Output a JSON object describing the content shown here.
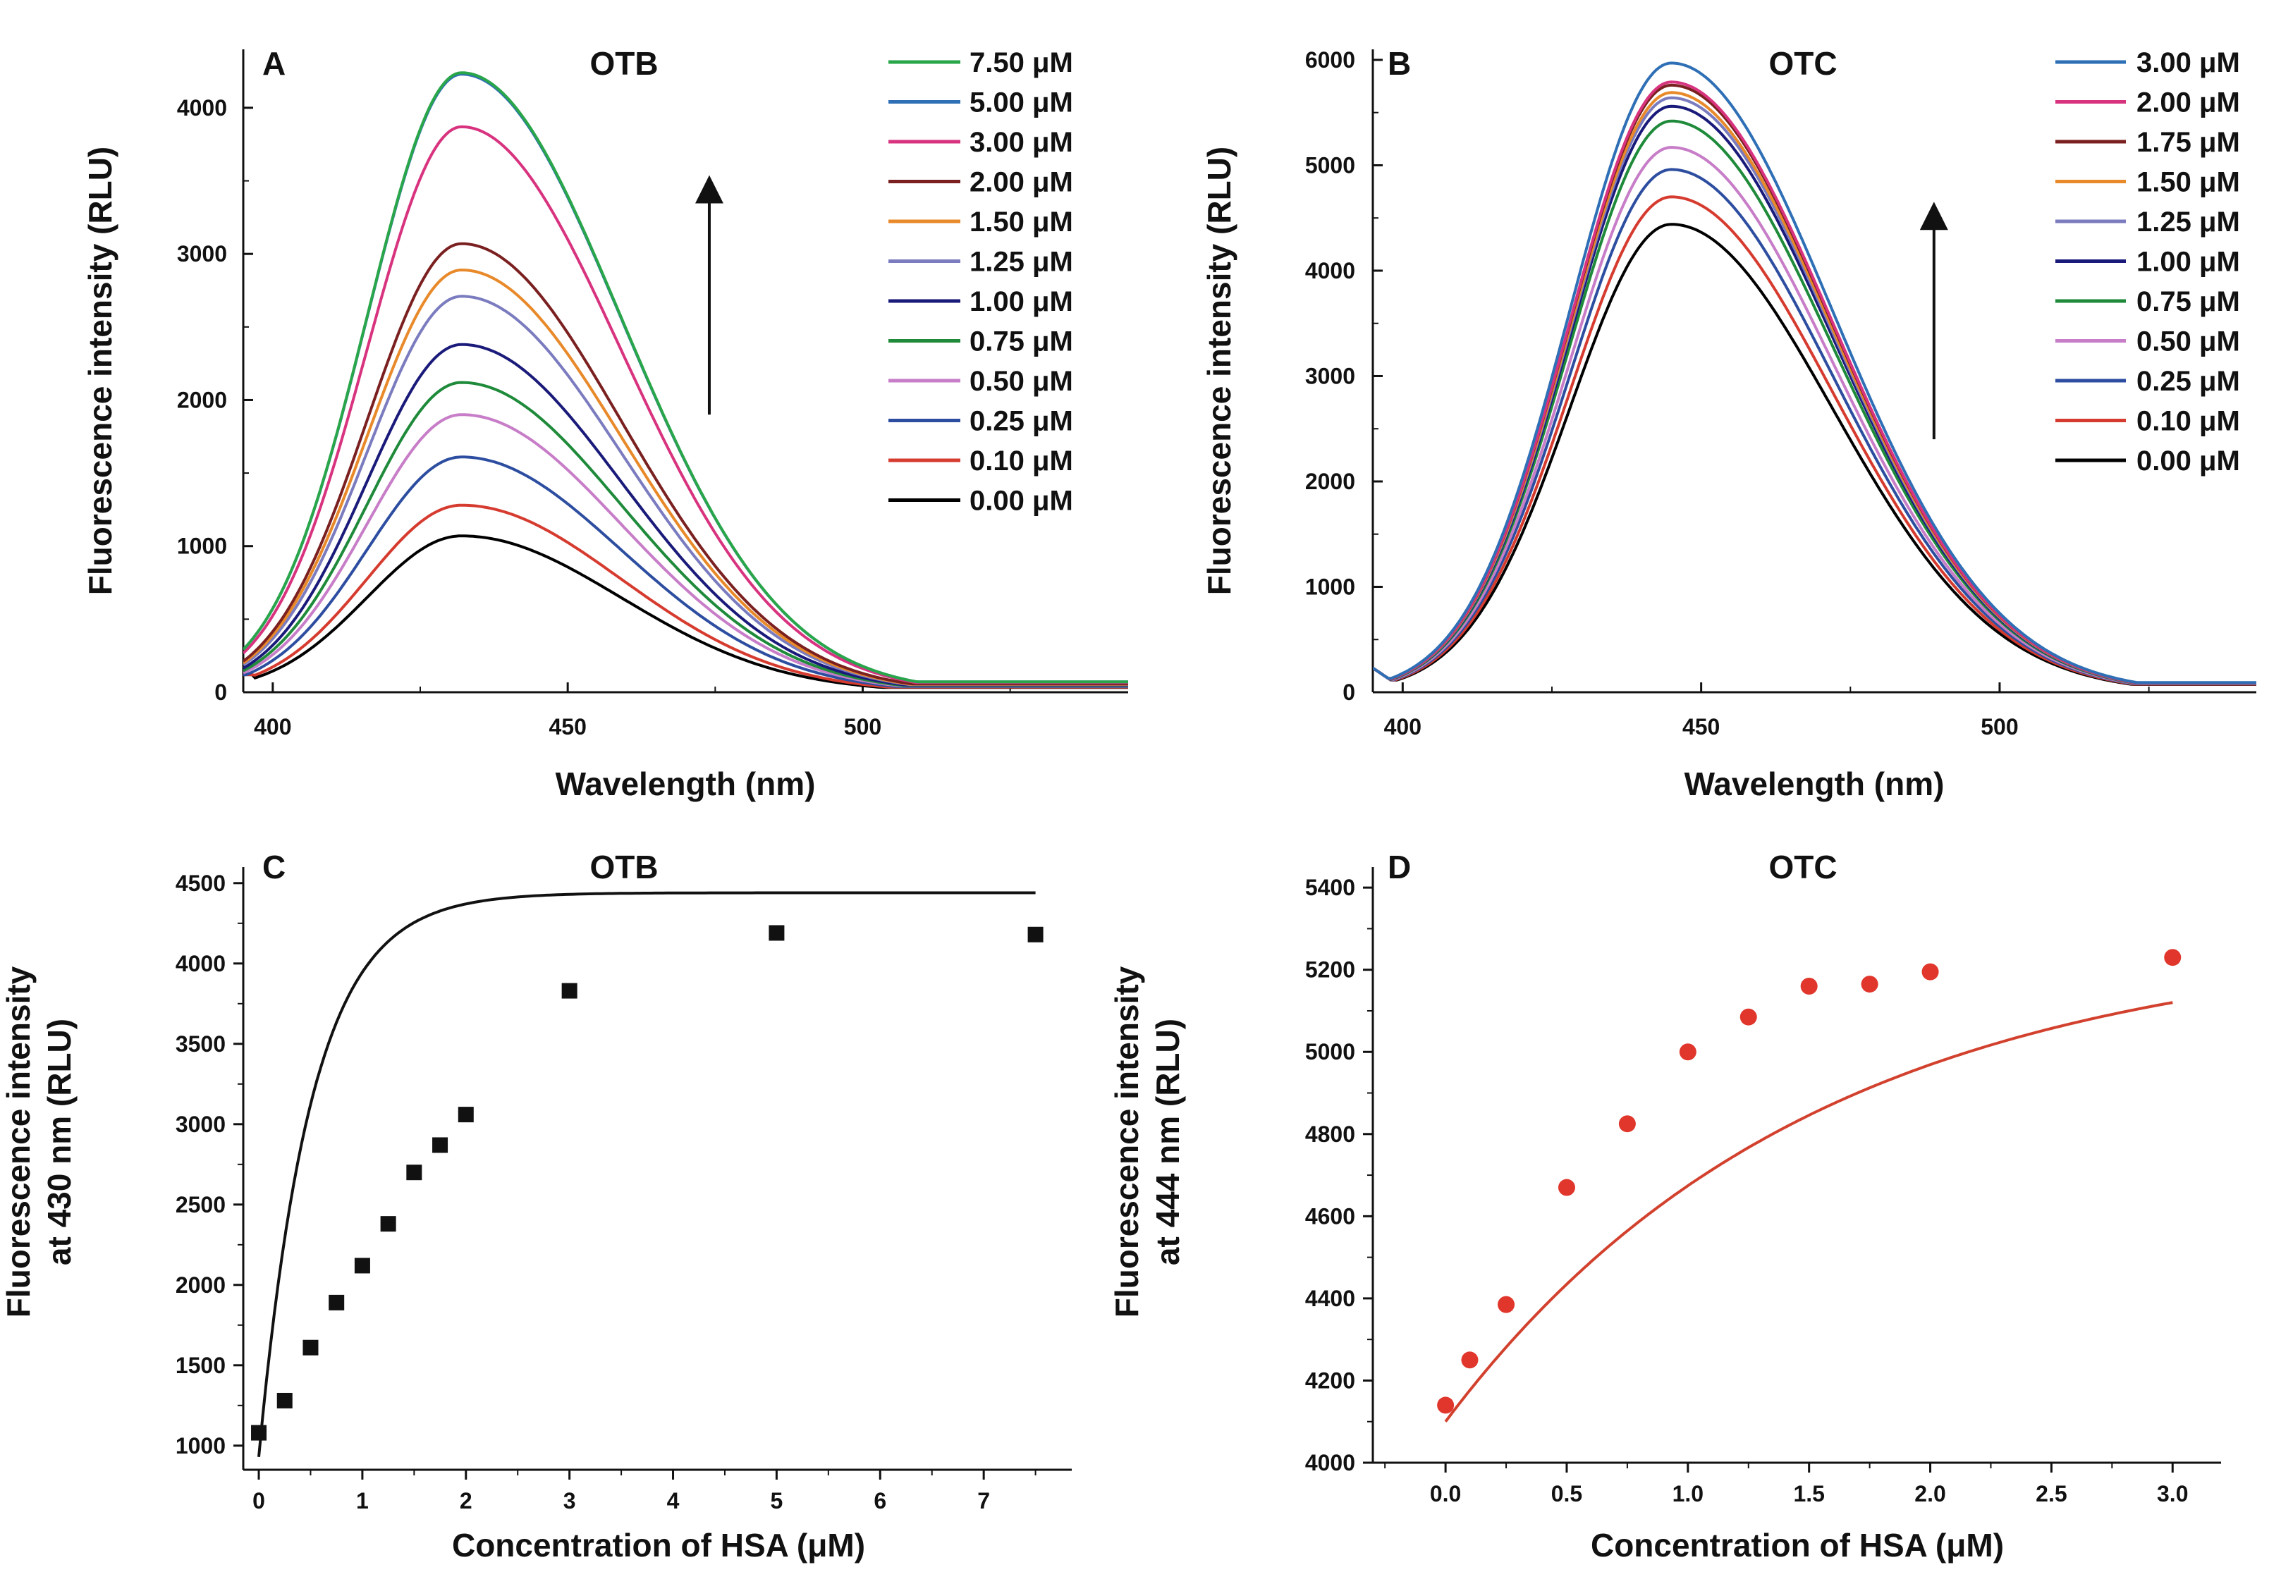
{
  "chart_data": [
    {
      "id": "A",
      "type": "line",
      "panel_letter": "A",
      "title": "OTB",
      "xlabel": "Wavelength (nm)",
      "ylabel": "Fluorescence intensity (RLU)",
      "xlim": [
        395,
        545
      ],
      "ylim": [
        0,
        4400
      ],
      "xticks": [
        400,
        450,
        500
      ],
      "yticks": [
        0,
        1000,
        2000,
        3000,
        4000
      ],
      "x_minor_step": 25,
      "y_minor_step": 500,
      "legend_position": "top-right",
      "curve_shape": {
        "peak_nm": 432,
        "sigma_left_nm": 16,
        "sigma_right_nm": 27,
        "baseline_start": 120
      },
      "arrow": {
        "x": 474,
        "y_from": 1900,
        "y_to": 3500
      },
      "series": [
        {
          "name": "7.50 μM",
          "color": "#2aa64a",
          "peak": 4240
        },
        {
          "name": "5.00 μM",
          "color": "#2e6fb5",
          "peak": 4230
        },
        {
          "name": "3.00 μM",
          "color": "#d8337f",
          "peak": 3870
        },
        {
          "name": "2.00 μM",
          "color": "#7b2020",
          "peak": 3070
        },
        {
          "name": "1.50 μM",
          "color": "#e8892a",
          "peak": 2890
        },
        {
          "name": "1.25 μM",
          "color": "#7b7bbf",
          "peak": 2710
        },
        {
          "name": "1.00 μM",
          "color": "#1a1a7a",
          "peak": 2380
        },
        {
          "name": "0.75 μM",
          "color": "#1e8a3a",
          "peak": 2120
        },
        {
          "name": "0.50 μM",
          "color": "#c77dc7",
          "peak": 1900
        },
        {
          "name": "0.25 μM",
          "color": "#2d4ea0",
          "peak": 1610
        },
        {
          "name": "0.10 μM",
          "color": "#d63b2f",
          "peak": 1280
        },
        {
          "name": "0.00 μM",
          "color": "#000000",
          "peak": 1070
        }
      ]
    },
    {
      "id": "B",
      "type": "line",
      "panel_letter": "B",
      "title": "OTC",
      "xlabel": "Wavelength (nm)",
      "ylabel": "Fluorescence intensity (RLU)",
      "xlim": [
        395,
        543
      ],
      "ylim": [
        0,
        6100
      ],
      "xticks": [
        400,
        450,
        500
      ],
      "yticks": [
        0,
        1000,
        2000,
        3000,
        4000,
        5000,
        6000
      ],
      "x_minor_step": 25,
      "y_minor_step": 500,
      "legend_position": "top-right",
      "curve_shape": {
        "peak_nm": 445,
        "sigma_left_nm": 17,
        "sigma_right_nm": 27,
        "baseline_start": 230
      },
      "arrow": {
        "x": 489,
        "y_from": 2400,
        "y_to": 4600
      },
      "series": [
        {
          "name": "3.00 μM",
          "color": "#2e6fb5",
          "peak": 5970
        },
        {
          "name": "2.00 μM",
          "color": "#d8337f",
          "peak": 5790
        },
        {
          "name": "1.75 μM",
          "color": "#7b2020",
          "peak": 5760
        },
        {
          "name": "1.50 μM",
          "color": "#e8892a",
          "peak": 5690
        },
        {
          "name": "1.25 μM",
          "color": "#7b7bbf",
          "peak": 5640
        },
        {
          "name": "1.00 μM",
          "color": "#1a1a7a",
          "peak": 5560
        },
        {
          "name": "0.75 μM",
          "color": "#1e8a3a",
          "peak": 5420
        },
        {
          "name": "0.50 μM",
          "color": "#c77dc7",
          "peak": 5170
        },
        {
          "name": "0.25 μM",
          "color": "#2d4ea0",
          "peak": 4960
        },
        {
          "name": "0.10 μM",
          "color": "#d63b2f",
          "peak": 4700
        },
        {
          "name": "0.00 μM",
          "color": "#000000",
          "peak": 4440
        }
      ]
    },
    {
      "id": "C",
      "type": "scatter",
      "panel_letter": "C",
      "title": "OTB",
      "xlabel": "Concentration of HSA (μM)",
      "ylabel": [
        "Fluorescence intensity",
        "at 430 nm (RLU)"
      ],
      "xlim": [
        -0.15,
        7.85
      ],
      "ylim": [
        850,
        4600
      ],
      "xticks": [
        0,
        1,
        2,
        3,
        4,
        5,
        6,
        7
      ],
      "yticks": [
        1000,
        1500,
        2000,
        2500,
        3000,
        3500,
        4000,
        4500
      ],
      "x_minor_step": 0.5,
      "y_minor_step": 250,
      "marker": "square",
      "point_color": "#111111",
      "fit_color": "#111111",
      "x": [
        0,
        0.25,
        0.5,
        0.75,
        1.0,
        1.25,
        1.5,
        1.75,
        2.0,
        3.0,
        5.0,
        7.5
      ],
      "y": [
        1080,
        1280,
        1610,
        1890,
        2120,
        2380,
        2700,
        2870,
        3060,
        3830,
        4190,
        4180
      ],
      "fit": {
        "model": "saturation",
        "y0": 930,
        "ymax": 4440,
        "k": 0.51,
        "x_range": [
          0,
          7.5
        ]
      }
    },
    {
      "id": "D",
      "type": "scatter",
      "panel_letter": "D",
      "title": "OTC",
      "xlabel": "Concentration of HSA (μM)",
      "ylabel": [
        "Fluorescence intensity",
        "at 444 nm (RLU)"
      ],
      "xlim": [
        -0.3,
        3.2
      ],
      "ylim": [
        4000,
        5450
      ],
      "xticks": [
        "0.0",
        "0.5",
        "1.0",
        "1.5",
        "2.0",
        "2.5",
        "3.0"
      ],
      "yticks": [
        4000,
        4200,
        4400,
        4600,
        4800,
        5000,
        5200,
        5400
      ],
      "x_minor_step": 0.25,
      "y_minor_step": 100,
      "marker": "circle",
      "point_color": "#e0362c",
      "fit_color": "#d2412e",
      "x": [
        0,
        0.1,
        0.25,
        0.5,
        0.75,
        1.0,
        1.25,
        1.5,
        1.75,
        2.0,
        3.0
      ],
      "y": [
        4140,
        4250,
        4385,
        4670,
        4825,
        5000,
        5085,
        5160,
        5165,
        5195,
        5230
      ],
      "fit": {
        "model": "saturation",
        "y0": 4100,
        "ymax": 5280,
        "k": 1.5,
        "x_range": [
          0,
          3.0
        ]
      }
    }
  ]
}
